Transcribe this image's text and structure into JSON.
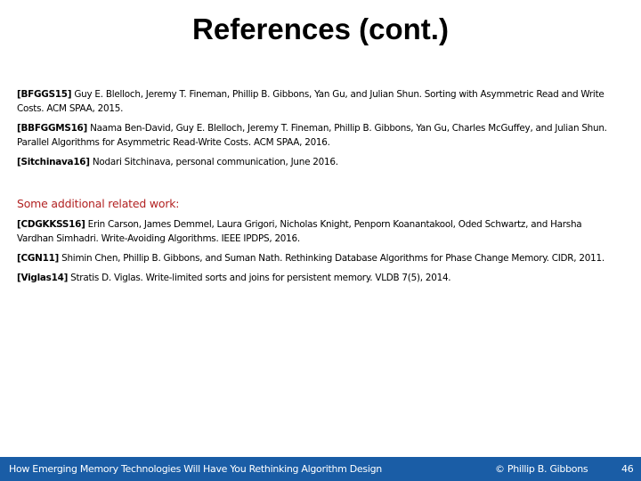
{
  "title": "References (cont.)",
  "references": [
    {
      "key": "[BFGGS15]",
      "text": "Guy E. Blelloch, Jeremy T. Fineman, Phillip B. Gibbons, Yan Gu, and Julian Shun. Sorting with Asymmetric Read and Write Costs. ACM SPAA, 2015."
    },
    {
      "key": "[BBFGGMS16]",
      "text": "Naama Ben-David, Guy E. Blelloch, Jeremy T. Fineman, Phillip B. Gibbons, Yan Gu, Charles McGuffey, and Julian Shun. Parallel Algorithms for Asymmetric Read-Write Costs. ACM SPAA, 2016."
    },
    {
      "key": "[Sitchinava16]",
      "text": "Nodari Sitchinava, personal communication, June 2016."
    }
  ],
  "additional_heading": "Some additional related work:",
  "additional": [
    {
      "key": "[CDGKKSS16]",
      "text": "Erin Carson, James Demmel, Laura Grigori, Nicholas Knight, Penporn Koanantakool, Oded Schwartz, and Harsha Vardhan Simhadri. Write-Avoiding Algorithms. IEEE IPDPS, 2016."
    },
    {
      "key": "[CGN11]",
      "text": "Shimin Chen, Phillip B. Gibbons, and Suman Nath. Rethinking Database Algorithms for Phase Change Memory. CIDR, 2011."
    },
    {
      "key": "[Viglas14]",
      "text": "Stratis D. Viglas. Write-limited sorts and joins for persistent memory. VLDB 7(5), 2014."
    }
  ],
  "footer": {
    "talk_title": "How Emerging Memory Technologies Will Have You Rethinking Algorithm Design",
    "author": "© Phillip B. Gibbons",
    "page": "46",
    "color": "#1a5da6"
  },
  "colors": {
    "heading_accent": "#b22222"
  }
}
